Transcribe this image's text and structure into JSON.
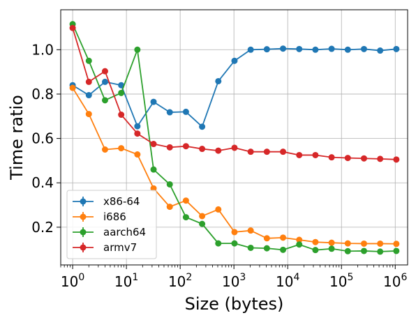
{
  "chart_data": {
    "type": "line",
    "xlabel": "Size (bytes)",
    "ylabel": "Time ratio",
    "xscale": "log",
    "xlim": [
      0.6,
      1700000
    ],
    "ylim": [
      0.03,
      1.18
    ],
    "grid": true,
    "legend_position": "bottom-left",
    "x_ticks": [
      {
        "value": 1,
        "base": "10",
        "exp": "0"
      },
      {
        "value": 10,
        "base": "10",
        "exp": "1"
      },
      {
        "value": 100,
        "base": "10",
        "exp": "2"
      },
      {
        "value": 1000,
        "base": "10",
        "exp": "3"
      },
      {
        "value": 10000,
        "base": "10",
        "exp": "4"
      },
      {
        "value": 100000,
        "base": "10",
        "exp": "5"
      },
      {
        "value": 1000000,
        "base": "10",
        "exp": "6"
      }
    ],
    "y_ticks": [
      {
        "value": 0.2,
        "label": "0.2"
      },
      {
        "value": 0.4,
        "label": "0.4"
      },
      {
        "value": 0.6,
        "label": "0.6"
      },
      {
        "value": 0.8,
        "label": "0.8"
      },
      {
        "value": 1.0,
        "label": "1.0"
      }
    ],
    "x": [
      1,
      2,
      4,
      8,
      16,
      32,
      64,
      128,
      256,
      512,
      1024,
      2048,
      4096,
      8192,
      16384,
      32768,
      65536,
      131072,
      262144,
      524288,
      1048576
    ],
    "series": [
      {
        "name": "x86-64",
        "color": "#1f77b4",
        "values": [
          0.84,
          0.795,
          0.855,
          0.84,
          0.655,
          0.765,
          0.718,
          0.72,
          0.653,
          0.858,
          0.95,
          1.0,
          1.002,
          1.005,
          1.003,
          1.0,
          1.004,
          1.0,
          1.003,
          0.996,
          1.003
        ]
      },
      {
        "name": "i686",
        "color": "#ff7f0e",
        "values": [
          0.828,
          0.71,
          0.55,
          0.556,
          0.528,
          0.375,
          0.292,
          0.32,
          0.25,
          0.28,
          0.178,
          0.185,
          0.15,
          0.153,
          0.143,
          0.133,
          0.13,
          0.127,
          0.126,
          0.126,
          0.125
        ]
      },
      {
        "name": "aarch64",
        "color": "#2ca02c",
        "values": [
          1.115,
          0.95,
          0.772,
          0.805,
          1.0,
          0.46,
          0.393,
          0.245,
          0.215,
          0.127,
          0.127,
          0.107,
          0.105,
          0.098,
          0.122,
          0.097,
          0.103,
          0.092,
          0.093,
          0.09,
          0.093
        ]
      },
      {
        "name": "armv7",
        "color": "#d62728",
        "values": [
          1.098,
          0.855,
          0.903,
          0.707,
          0.622,
          0.575,
          0.56,
          0.565,
          0.553,
          0.545,
          0.558,
          0.54,
          0.54,
          0.54,
          0.525,
          0.525,
          0.515,
          0.512,
          0.51,
          0.508,
          0.505
        ]
      }
    ]
  }
}
